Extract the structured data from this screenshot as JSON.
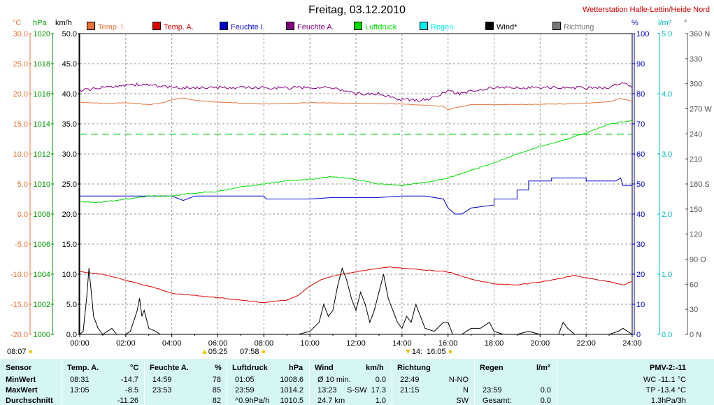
{
  "header": {
    "title": "Freitag, 03.12.2010",
    "station": "Wetterstation Halle-Lettin/Heide Nord"
  },
  "units": {
    "temp": "°C",
    "pressure": "hPa",
    "wind": "km/h",
    "humidity": "%",
    "rain": "l/m²",
    "direction": "°"
  },
  "colors": {
    "temp_in": "#e8743b",
    "temp_out": "#dd0000",
    "hum_in": "#0000cc",
    "hum_out": "#800080",
    "pressure": "#00dd00",
    "rain": "#00eeee",
    "wind": "#000000",
    "direction": "#777777"
  },
  "legend": [
    {
      "label": "Temp. I.",
      "color": "#e8743b"
    },
    {
      "label": "Temp. A.",
      "color": "#dd0000"
    },
    {
      "label": "Feuchte I.",
      "color": "#0000cc"
    },
    {
      "label": "Feuchte A.",
      "color": "#800080"
    },
    {
      "label": "Luftdruck",
      "color": "#00dd00"
    },
    {
      "label": "Regen",
      "color": "#00eeee"
    },
    {
      "label": "Wind*",
      "color": "#000000"
    },
    {
      "label": "Richtung",
      "color": "#777777"
    }
  ],
  "chart_data": {
    "type": "line",
    "grid": true,
    "legend_position": "top",
    "x_range": [
      0,
      24
    ],
    "x_ticks": [
      "00:00",
      "02:00",
      "04:00",
      "06:00",
      "08:00",
      "10:00",
      "12:00",
      "14:00",
      "16:00",
      "18:00",
      "20:00",
      "22:00",
      "24:00"
    ],
    "axes": {
      "temp": {
        "range": [
          -20,
          30
        ],
        "ticks": [
          "30.0",
          "25.0",
          "20.0",
          "15.0",
          "10.0",
          "5.0",
          "0.0",
          "-5.0",
          "-10.0",
          "-15.0",
          "-20.0"
        ]
      },
      "pressure": {
        "range": [
          1000,
          1020
        ],
        "ticks": [
          "1020",
          "1018",
          "1016",
          "1014",
          "1012",
          "1010",
          "1008",
          "1006",
          "1004",
          "1002",
          "1000"
        ]
      },
      "wind": {
        "range": [
          0,
          50
        ],
        "ticks": [
          "50.0",
          "45.0",
          "40.0",
          "35.0",
          "30.0",
          "25.0",
          "20.0",
          "15.0",
          "10.0",
          "5.0",
          "0.0"
        ]
      },
      "humidity": {
        "range": [
          0,
          100
        ],
        "ticks": [
          "100",
          "90",
          "80",
          "70",
          "60",
          "50",
          "40",
          "30",
          "20",
          "10",
          "0"
        ]
      },
      "rain": {
        "range": [
          0,
          5
        ],
        "ticks": [
          "5.0",
          "4.0",
          "3.0",
          "2.0",
          "1.0",
          "0.0"
        ]
      },
      "direction": {
        "range": [
          0,
          360
        ],
        "ticks": [
          "360 N",
          "330",
          "300",
          "270 W",
          "240",
          "210",
          "180 S",
          "150",
          "120",
          "90 O",
          "60",
          "30",
          "0 N"
        ]
      }
    },
    "reference_pressure": 1013.3,
    "series": [
      {
        "name": "Temp. I.",
        "axis": "temp",
        "color": "#e8743b",
        "points": [
          [
            0,
            18.6
          ],
          [
            1,
            18.4
          ],
          [
            2,
            18.5
          ],
          [
            3,
            18.2
          ],
          [
            3.5,
            18.4
          ],
          [
            4,
            19.0
          ],
          [
            4.5,
            19.3
          ],
          [
            5,
            18.9
          ],
          [
            6,
            18.6
          ],
          [
            8,
            18.3
          ],
          [
            10,
            18.5
          ],
          [
            12,
            18.4
          ],
          [
            14,
            18.3
          ],
          [
            15,
            18.1
          ],
          [
            15.8,
            17.9
          ],
          [
            16,
            17.3
          ],
          [
            16.2,
            17.6
          ],
          [
            17,
            18.2
          ],
          [
            19,
            18.2
          ],
          [
            21,
            18.3
          ],
          [
            22,
            18.4
          ],
          [
            23,
            18.7
          ],
          [
            23.5,
            19.2
          ],
          [
            24,
            18.8
          ]
        ]
      },
      {
        "name": "Temp. A.",
        "axis": "temp",
        "color": "#dd0000",
        "points": [
          [
            0,
            -9.6
          ],
          [
            1,
            -10.0
          ],
          [
            1.5,
            -10.5
          ],
          [
            2,
            -11.0
          ],
          [
            3,
            -12.0
          ],
          [
            3.5,
            -12.5
          ],
          [
            4,
            -13.2
          ],
          [
            5,
            -13.5
          ],
          [
            6,
            -13.9
          ],
          [
            7,
            -14.3
          ],
          [
            8,
            -14.7
          ],
          [
            9,
            -14.3
          ],
          [
            9.5,
            -13.5
          ],
          [
            10,
            -12.0
          ],
          [
            10.5,
            -10.9
          ],
          [
            11,
            -10.3
          ],
          [
            12,
            -9.6
          ],
          [
            13,
            -9.0
          ],
          [
            13.5,
            -8.8
          ],
          [
            14,
            -9.0
          ],
          [
            15,
            -9.3
          ],
          [
            16,
            -9.6
          ],
          [
            17,
            -10.8
          ],
          [
            18,
            -11.6
          ],
          [
            19,
            -11.8
          ],
          [
            20,
            -11.3
          ],
          [
            21,
            -10.6
          ],
          [
            21.5,
            -10.2
          ],
          [
            22,
            -10.6
          ],
          [
            23,
            -11.2
          ],
          [
            23.6,
            -11.8
          ],
          [
            24,
            -11.2
          ]
        ]
      },
      {
        "name": "Feuchte I.",
        "axis": "humidity",
        "color": "#0000cc",
        "points": [
          [
            0,
            46
          ],
          [
            4,
            46
          ],
          [
            4.5,
            44.5
          ],
          [
            5,
            46
          ],
          [
            8,
            46
          ],
          [
            8.1,
            45
          ],
          [
            10,
            45
          ],
          [
            11,
            45.5
          ],
          [
            13,
            45.5
          ],
          [
            14,
            46
          ],
          [
            15,
            46
          ],
          [
            15.8,
            45
          ],
          [
            16,
            42
          ],
          [
            16.3,
            40
          ],
          [
            16.6,
            40
          ],
          [
            17,
            42
          ],
          [
            18,
            43
          ],
          [
            18,
            45
          ],
          [
            19,
            45
          ],
          [
            19,
            48
          ],
          [
            19.5,
            48
          ],
          [
            19.5,
            51
          ],
          [
            20.5,
            51
          ],
          [
            20.5,
            52
          ],
          [
            22,
            52
          ],
          [
            22,
            51
          ],
          [
            23.3,
            51
          ],
          [
            23.5,
            52
          ],
          [
            23.6,
            49.5
          ],
          [
            24,
            49.5
          ]
        ]
      },
      {
        "name": "Feuchte A.",
        "axis": "humidity",
        "color": "#800080",
        "points": [
          [
            0,
            81
          ],
          [
            1,
            82
          ],
          [
            2,
            83
          ],
          [
            3,
            83
          ],
          [
            4,
            82
          ],
          [
            5,
            82
          ],
          [
            6,
            82
          ],
          [
            7,
            82
          ],
          [
            8,
            82
          ],
          [
            9,
            82
          ],
          [
            10,
            82
          ],
          [
            11,
            82
          ],
          [
            12,
            80
          ],
          [
            13,
            80
          ],
          [
            14,
            78
          ],
          [
            15,
            78
          ],
          [
            15.5,
            79
          ],
          [
            16,
            81
          ],
          [
            16.5,
            80
          ],
          [
            17,
            81
          ],
          [
            18,
            82
          ],
          [
            19,
            82
          ],
          [
            20,
            82
          ],
          [
            21,
            82
          ],
          [
            22,
            82
          ],
          [
            23,
            82
          ],
          [
            23.6,
            84
          ],
          [
            24,
            82
          ]
        ]
      },
      {
        "name": "Luftdruck",
        "axis": "pressure",
        "color": "#00dd00",
        "points": [
          [
            0,
            1008.8
          ],
          [
            1,
            1008.8
          ],
          [
            2,
            1009.0
          ],
          [
            3,
            1009.2
          ],
          [
            4,
            1009.2
          ],
          [
            5,
            1009.4
          ],
          [
            6,
            1009.5
          ],
          [
            7,
            1009.8
          ],
          [
            8,
            1010.0
          ],
          [
            9,
            1010.2
          ],
          [
            10,
            1010.3
          ],
          [
            11,
            1010.5
          ],
          [
            12,
            1010.3
          ],
          [
            13,
            1010.0
          ],
          [
            14,
            1009.9
          ],
          [
            15,
            1010.1
          ],
          [
            16,
            1010.4
          ],
          [
            17,
            1010.9
          ],
          [
            18,
            1011.4
          ],
          [
            19,
            1012.0
          ],
          [
            20,
            1012.5
          ],
          [
            21,
            1012.9
          ],
          [
            22,
            1013.4
          ],
          [
            23,
            1014.0
          ],
          [
            24,
            1014.2
          ]
        ]
      },
      {
        "name": "Wind*",
        "axis": "wind",
        "color": "#000000",
        "points": [
          [
            0,
            0
          ],
          [
            0.15,
            0.5
          ],
          [
            0.3,
            6
          ],
          [
            0.4,
            11
          ],
          [
            0.5,
            7
          ],
          [
            0.6,
            3
          ],
          [
            0.8,
            1
          ],
          [
            1,
            0
          ],
          [
            1.2,
            0.5
          ],
          [
            1.4,
            1
          ],
          [
            1.6,
            0
          ],
          [
            2,
            0
          ],
          [
            2.2,
            0.5
          ],
          [
            2.5,
            4
          ],
          [
            2.6,
            6
          ],
          [
            2.7,
            3
          ],
          [
            2.8,
            4
          ],
          [
            3,
            1
          ],
          [
            3.3,
            0.5
          ],
          [
            3.5,
            0
          ],
          [
            6,
            0
          ],
          [
            7,
            0
          ],
          [
            9.5,
            0
          ],
          [
            10,
            0.5
          ],
          [
            10.4,
            2
          ],
          [
            10.6,
            5
          ],
          [
            10.8,
            3
          ],
          [
            11,
            4
          ],
          [
            11.2,
            8
          ],
          [
            11.4,
            11
          ],
          [
            11.6,
            9
          ],
          [
            11.8,
            6
          ],
          [
            12,
            4
          ],
          [
            12.2,
            7
          ],
          [
            12.4,
            5
          ],
          [
            12.6,
            2
          ],
          [
            12.8,
            4
          ],
          [
            13,
            7
          ],
          [
            13.2,
            10
          ],
          [
            13.4,
            6
          ],
          [
            13.6,
            4
          ],
          [
            13.8,
            2
          ],
          [
            14,
            1
          ],
          [
            14.2,
            3
          ],
          [
            14.4,
            2
          ],
          [
            14.6,
            5
          ],
          [
            14.8,
            3
          ],
          [
            15,
            1
          ],
          [
            15.4,
            0.5
          ],
          [
            15.8,
            2
          ],
          [
            16,
            2
          ],
          [
            16.2,
            0
          ],
          [
            16.6,
            0
          ],
          [
            17,
            1
          ],
          [
            17.4,
            1
          ],
          [
            17.8,
            2
          ],
          [
            18,
            0.5
          ],
          [
            18.4,
            0
          ],
          [
            19,
            0
          ],
          [
            19.5,
            0.5
          ],
          [
            20,
            0
          ],
          [
            20.8,
            0
          ],
          [
            21,
            2
          ],
          [
            21.2,
            1
          ],
          [
            21.5,
            0
          ],
          [
            23,
            0
          ],
          [
            23.4,
            0.5
          ],
          [
            23.6,
            1
          ],
          [
            24,
            0
          ]
        ]
      }
    ]
  },
  "table": {
    "headers": {
      "sensor": "Sensor",
      "temp": "Temp. A.",
      "temp_unit": "°C",
      "hum": "Feuchte A.",
      "hum_unit": "%",
      "press": "Luftdruck",
      "press_unit": "hPa",
      "wind": "Wind",
      "wind_unit": "km/h",
      "dir": "Richtung",
      "rain": "Regen",
      "rain_unit": "l/m²",
      "pmv": "PMV-2:-11"
    },
    "rows": [
      {
        "label": "MinWert",
        "temp_time": "08:31",
        "temp_val": "-14.7",
        "hum_time": "14:59",
        "hum_val": "78",
        "press_time": "01:05",
        "press_val": "1008.6",
        "wind_time": "Ø 10 min.",
        "wind_extra": "",
        "wind_val": "0.0",
        "dir_time": "22:49",
        "dir_val": "N-NO",
        "rain_time": "",
        "rain_val": "",
        "pmv": "WC -11.1 °C"
      },
      {
        "label": "MaxWert",
        "temp_time": "13:05",
        "temp_val": "-8.5",
        "hum_time": "23:53",
        "hum_val": "85",
        "press_time": "23:59",
        "press_val": "1014.2",
        "wind_time": "13:23",
        "wind_extra": "S-SW",
        "wind_val": "17.3",
        "dir_time": "21:15",
        "dir_val": "N",
        "rain_time": "23:59",
        "rain_val": "0.0",
        "pmv": "TP -13.4 °C"
      },
      {
        "label": "Durchschnitt",
        "temp_time": "",
        "temp_val": "-11.26",
        "hum_time": "",
        "hum_val": "82",
        "press_time": "^0.9hPa/h",
        "press_val": "1010.5",
        "wind_time": "24.7 km",
        "wind_extra": "",
        "wind_val": "1.0",
        "dir_time": "",
        "dir_val": "SW",
        "rain_time": "Gesamt:",
        "rain_val": "0.0",
        "pmv": "1.3hPa/3h"
      }
    ]
  },
  "sun": {
    "sunrise": "08:07",
    "sunset": "16:05",
    "moonrise": "05:25",
    "moonset": "07:58",
    "extra": "14:"
  }
}
